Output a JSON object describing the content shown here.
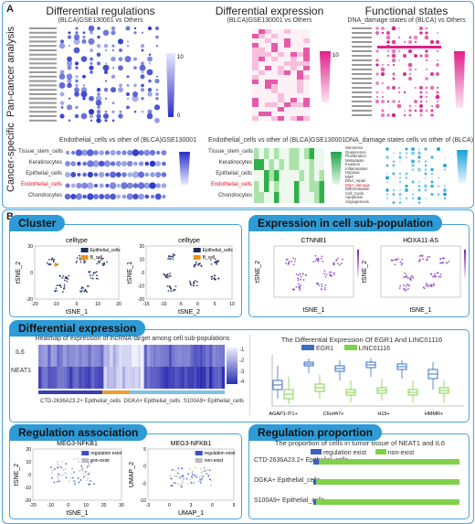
{
  "panelA": {
    "label": "A",
    "side_top": "Pan-cancer analysis",
    "side_bottom": "Cancer-specific",
    "col1": {
      "title": "Differential regulations",
      "subtitle": "(BLCA)GSE130001 vs Others"
    },
    "col2": {
      "title": "Differential expression",
      "subtitle": "(BLCA)GSE130001 vs Others"
    },
    "col3": {
      "title": "Functional states",
      "subtitle": "DNA_damage states of (BLCA) vs Others"
    },
    "cs1": {
      "subtitle": "Endothelial_cells vs other of (BLCA)GSE130001",
      "rows": [
        "Tissue_stem_cells",
        "Keratinocytes",
        "Epithelial_cells",
        "Endothelial_cells",
        "Chondrocytes"
      ]
    },
    "cs2": {
      "subtitle": "Endothelial_cells vs other of (BLCA)GSE130001",
      "rows": [
        "Tissue_stem_cells",
        "Keratinocytes",
        "Epithelial_cells",
        "Endothelial_cells",
        "Chondrocytes"
      ]
    },
    "cs3": {
      "subtitle": "DNA_damage states cells vs other of (BLCA)",
      "rows": [
        "Stemness",
        "Quiescence",
        "Proliferation",
        "Metastasis",
        "Invasion",
        "Inflammation",
        "Hypoxia",
        "EMT",
        "DNA_repair",
        "DNA_damage",
        "Differentiation",
        "Cell_Cycle",
        "Apoptosis",
        "Angiogenesis"
      ]
    },
    "colorbar_max": "10",
    "colorbar_min": "0"
  },
  "panelB": {
    "label": "B",
    "cluster": {
      "tab": "Cluster",
      "plot1": {
        "title": "celltype",
        "legend": [
          "Epithelial_cells",
          "B_cell"
        ],
        "xlabel": "tSNE_1",
        "ylabel": "tSNE_2",
        "xticks": [
          "-20",
          "-10",
          "0",
          "10",
          "20"
        ],
        "yticks": [
          "20",
          "0",
          "-20"
        ]
      },
      "plot2": {
        "title": "celltype",
        "legend": [
          "Epithelial_cells",
          "B_cell"
        ],
        "xlabel": "tSNE_2",
        "ylabel": "tSNE_1",
        "xticks": [
          "-15",
          "-10",
          "-5",
          "0",
          "5",
          "10"
        ],
        "yticks": [
          "20",
          "10",
          "0",
          "-10",
          "-20"
        ]
      },
      "colors": {
        "epithelial": "#1f2a5a",
        "bcell": "#e8961e"
      }
    },
    "subpop": {
      "tab": "Expression in cell sub-population",
      "plot1": {
        "title": "CTNNB1",
        "xlabel": "tSNE_1",
        "ylabel": "tSNE_2"
      },
      "plot2": {
        "title": "HOXA11-AS",
        "xlabel": "tSNE_1",
        "ylabel": "tSNE_2"
      }
    },
    "diffexp": {
      "tab": "Differential expression",
      "heatmap_title": "Heatmap of expression of lncRNA-target among cell sub-populations",
      "rows": [
        "IL6",
        "NEAT1"
      ],
      "groups": [
        "CTD-2636A23.2+ Epithelial_cells",
        "DGKA+ Epithelial_cells",
        "S100A9+ Epithelial_cells"
      ],
      "scale": [
        "-1",
        "-2",
        "-3",
        "-4"
      ],
      "box_title": "The Differential Expression Of EGR1 And LINC01116",
      "box_legend": [
        "EGR1",
        "LINC01116"
      ],
      "box_colors": {
        "egr1": "#3a6fc4",
        "linc": "#7fd14a"
      },
      "box_categories": [
        "AGAP1-IT1+",
        "C6orf47+",
        "H19+",
        "HMMR+"
      ]
    },
    "regassoc": {
      "tab": "Regulation association",
      "plot1": {
        "title": "MEG3-NFKB1",
        "xlabel": "tSNE_1",
        "ylabel": "tSNE_2",
        "xticks": [
          "-20",
          "-10",
          "0",
          "10",
          "20",
          "30"
        ],
        "yticks": [
          "20",
          "10",
          "0",
          "-10",
          "-20"
        ]
      },
      "plot2": {
        "title": "MEG3-NFKB1",
        "xlabel": "UMAP_1",
        "ylabel": "UMAP_2",
        "xticks": [
          "-3",
          "0",
          "3",
          "6",
          "9"
        ],
        "yticks": [
          "5",
          "0",
          "-5",
          "-10"
        ]
      },
      "legend": [
        "regulation exist",
        "non-exist"
      ]
    },
    "regprop": {
      "tab": "Regulation proportion",
      "title": "The proportion of cells in tumor tissue of NEAT1 and IL6",
      "legend": [
        "regulation exist",
        "non-exist"
      ],
      "categories": [
        "CTD-2636A23.2+ Epithelial_cells",
        "DGKA+ Epithelial_cells",
        "S100A9+ Epithelial_cells"
      ],
      "exist_fraction": [
        0.04,
        0.02,
        0.02
      ],
      "colors": {
        "exist": "#3a5fc4",
        "nonexist": "#7fd14a"
      }
    }
  }
}
